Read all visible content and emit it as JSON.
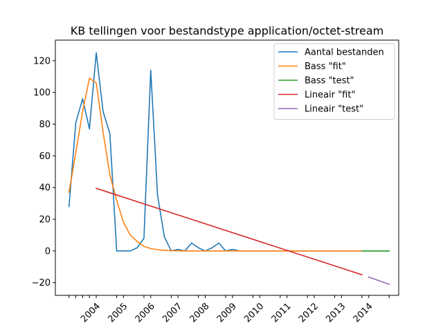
{
  "chart_data": {
    "type": "line",
    "title": "KB tellingen voor bestandstype application/octet-stream",
    "xlabel": "",
    "ylabel": "",
    "ylim": [
      -28,
      133
    ],
    "yticks": [
      -20,
      0,
      20,
      40,
      60,
      80,
      100,
      120
    ],
    "xlim": [
      2002.0,
      2014.6
    ],
    "xtick_labels": [
      "2004",
      "2005",
      "2006",
      "2007",
      "2008",
      "2009",
      "2010",
      "2011",
      "2012",
      "2013",
      "2014"
    ],
    "xtick_label_positions": [
      2003.5,
      2004.5,
      2005.5,
      2006.5,
      2007.5,
      2008.5,
      2009.5,
      2010.5,
      2011.5,
      2012.5,
      2013.5
    ],
    "minor_xticks": [
      2002.5,
      2002.75,
      2003.0,
      2003.25,
      2004.25,
      2005.25,
      2006.25,
      2007.25,
      2008.25,
      2009.25,
      2010.25,
      2011.25,
      2012.25,
      2013.25,
      2014.25
    ],
    "grid": false,
    "legend_position": "top-right",
    "series": [
      {
        "name": "Aantal bestanden",
        "color": "#1f77b4",
        "x": [
          2002.5,
          2002.75,
          2003.0,
          2003.25,
          2003.5,
          2003.75,
          2004.0,
          2004.25,
          2004.5,
          2004.75,
          2005.0,
          2005.25,
          2005.5,
          2005.75,
          2006.0,
          2006.25,
          2006.5,
          2006.75,
          2007.0,
          2007.25,
          2007.5,
          2007.75,
          2008.0,
          2008.25,
          2008.5,
          2008.75,
          2009.0,
          2009.25,
          2009.5,
          2009.75,
          2010.0,
          2010.25,
          2010.5,
          2010.75,
          2011.0,
          2011.25,
          2011.5,
          2011.75,
          2012.0,
          2012.25,
          2012.5,
          2012.75,
          2013.0,
          2013.25,
          2013.5,
          2013.75,
          2014.0,
          2014.25
        ],
        "y": [
          28,
          81,
          96,
          77,
          125,
          88,
          74,
          0,
          0,
          0,
          2,
          8,
          114,
          35,
          9,
          0,
          1,
          0,
          5,
          2,
          0,
          2,
          5,
          0,
          1,
          0,
          0,
          0,
          0,
          0,
          0,
          0,
          0,
          0,
          0,
          0,
          0,
          0,
          0,
          0,
          0,
          0,
          0,
          0,
          0,
          0,
          0,
          0
        ]
      },
      {
        "name": "Bass \"fit\"",
        "color": "#ff7f0e",
        "x": [
          2002.5,
          2002.75,
          2003.0,
          2003.25,
          2003.5,
          2003.75,
          2004.0,
          2004.25,
          2004.5,
          2004.75,
          2005.0,
          2005.25,
          2005.5,
          2005.75,
          2006.0,
          2006.25,
          2006.5,
          2006.75,
          2007.0,
          2007.25,
          2007.5,
          2007.75,
          2008.0,
          2008.25,
          2008.5,
          2008.75,
          2009.0,
          2009.25,
          2009.5,
          2009.75,
          2010.0,
          2010.25,
          2010.5,
          2010.75,
          2011.0,
          2011.25,
          2011.5,
          2011.75,
          2012.0,
          2012.25,
          2012.5,
          2012.75,
          2013.0,
          2013.25
        ],
        "y": [
          37,
          62,
          88,
          109,
          106,
          75,
          48,
          32,
          18,
          10,
          6,
          3,
          1.5,
          0.8,
          0.4,
          0.2,
          0.1,
          0,
          0,
          0,
          0,
          0,
          0,
          0,
          0,
          0,
          0,
          0,
          0,
          0,
          0,
          0,
          0,
          0,
          0,
          0,
          0,
          0,
          0,
          0,
          0,
          0,
          0,
          0
        ]
      },
      {
        "name": "Bass \"test\"",
        "color": "#2ca02c",
        "x": [
          2013.25,
          2013.5,
          2013.75,
          2014.0,
          2014.25
        ],
        "y": [
          0,
          0,
          0,
          0,
          0
        ]
      },
      {
        "name": "Lineair \"fit\"",
        "color": "#d62728",
        "x": [
          2003.5,
          2013.25
        ],
        "y": [
          39.5,
          -15
        ]
      },
      {
        "name": "Lineair \"test\"",
        "color": "#9467bd",
        "x": [
          2013.5,
          2014.25
        ],
        "y": [
          -16.5,
          -21
        ]
      }
    ]
  }
}
